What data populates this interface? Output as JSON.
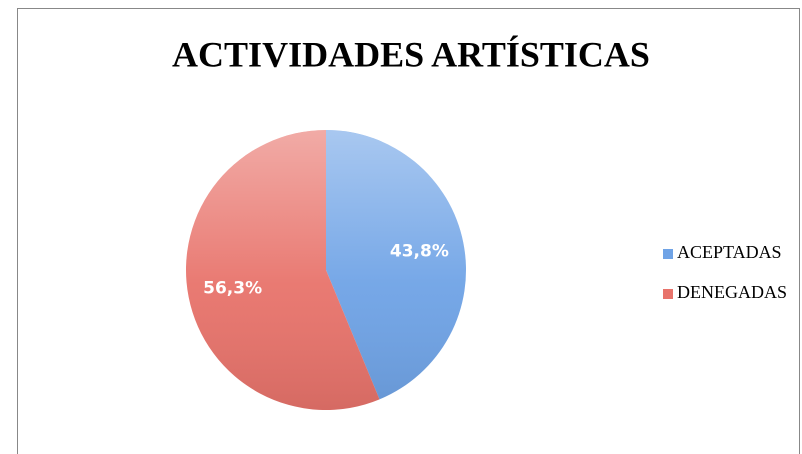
{
  "chart_data": {
    "type": "pie",
    "title": "ACTIVIDADES ARTÍSTICAS",
    "categories": [
      "ACEPTADAS",
      "DENEGADAS"
    ],
    "values": [
      43.8,
      56.3
    ],
    "value_labels": [
      "43,8%",
      "56,3%"
    ],
    "colors": [
      "#6fa3e6",
      "#e8736b"
    ],
    "legend": "right"
  }
}
